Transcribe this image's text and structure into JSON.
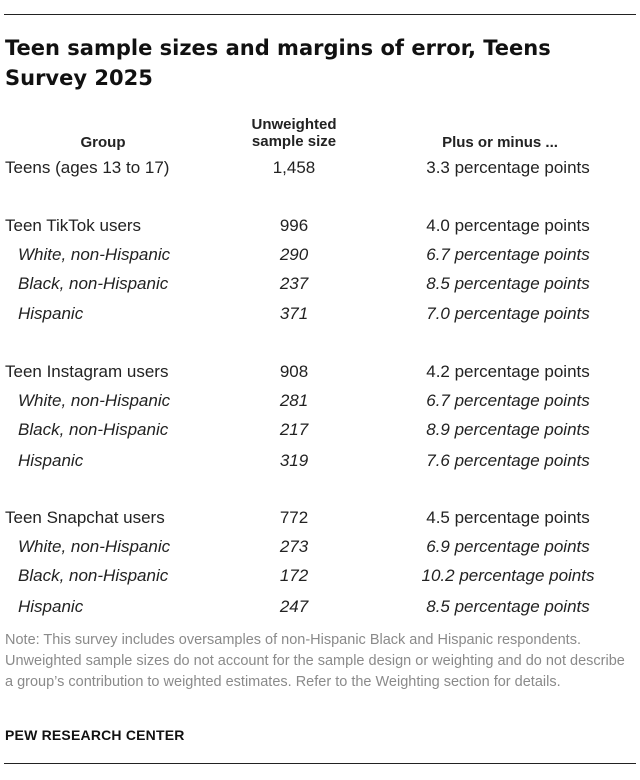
{
  "title": "Teen sample sizes and margins of error, Teens Survey 2025",
  "columns": {
    "group": "Group",
    "size_line1": "Unweighted",
    "size_line2": "sample size",
    "moe": "Plus or minus ..."
  },
  "rows": [
    {
      "group": "Teens (ages 13 to 17)",
      "n": "1,458",
      "moe": "3.3 percentage points"
    },
    {
      "group": "Teen TikTok users",
      "n": "996",
      "moe": "4.0 percentage points"
    },
    {
      "group": "White, non-Hispanic",
      "n": "290",
      "moe": "6.7 percentage points"
    },
    {
      "group": "Black, non-Hispanic",
      "n": "237",
      "moe": "8.5 percentage points"
    },
    {
      "group": "Hispanic",
      "n": "371",
      "moe": "7.0 percentage points"
    },
    {
      "group": "Teen Instagram users",
      "n": "908",
      "moe": "4.2 percentage points"
    },
    {
      "group": "White, non-Hispanic",
      "n": "281",
      "moe": "6.7 percentage points"
    },
    {
      "group": "Black, non-Hispanic",
      "n": "217",
      "moe": "8.9 percentage points"
    },
    {
      "group": "Hispanic",
      "n": "319",
      "moe": "7.6 percentage points"
    },
    {
      "group": "Teen Snapchat users",
      "n": "772",
      "moe": "4.5 percentage points"
    },
    {
      "group": "White, non-Hispanic",
      "n": "273",
      "moe": "6.9 percentage points"
    },
    {
      "group": "Black, non-Hispanic",
      "n": "172",
      "moe": "10.2 percentage points"
    },
    {
      "group": "Hispanic",
      "n": "247",
      "moe": "8.5 percentage points"
    }
  ],
  "note": "Note: This survey includes oversamples of non-Hispanic Black and Hispanic respondents. Unweighted sample sizes do not account for the sample design or weighting and do not describe a group’s contribution to weighted estimates. Refer to the Weighting section for details.",
  "source": "PEW RESEARCH CENTER"
}
